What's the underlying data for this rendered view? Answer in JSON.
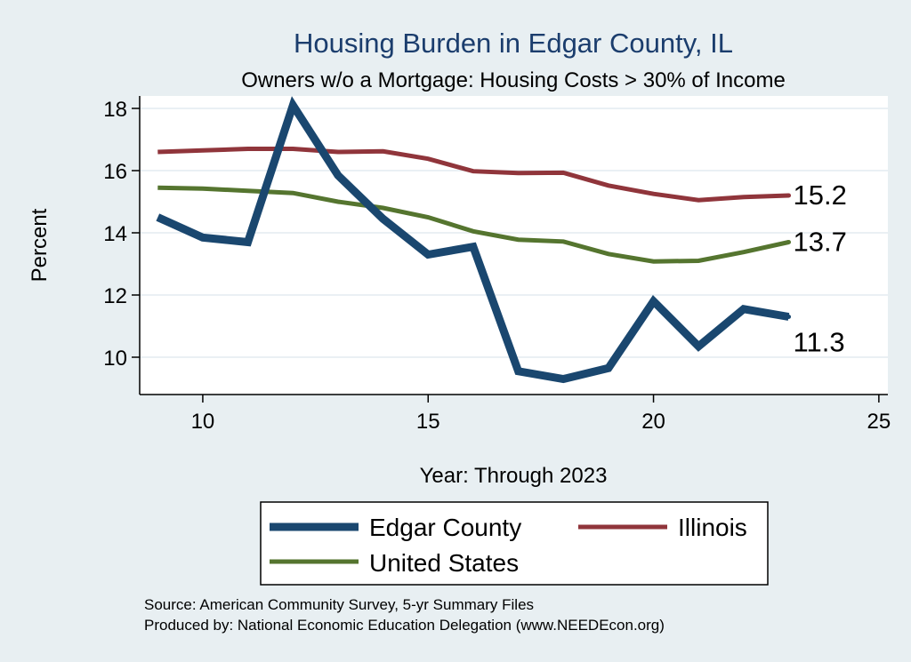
{
  "chart_data": {
    "type": "line",
    "title": "Housing Burden in Edgar County, IL",
    "subtitle": "Owners w/o a Mortgage: Housing Costs > 30% of Income",
    "xlabel": "Year: Through 2023",
    "ylabel": "Percent",
    "xlim": [
      8.6,
      25.2
    ],
    "ylim": [
      8.8,
      18.4
    ],
    "xticks": [
      10,
      15,
      20,
      25
    ],
    "yticks": [
      10,
      12,
      14,
      16,
      18
    ],
    "grid": true,
    "legend_position": "bottom",
    "x": [
      9,
      10,
      11,
      12,
      13,
      14,
      15,
      16,
      17,
      18,
      19,
      20,
      21,
      22,
      23
    ],
    "series": [
      {
        "name": "Edgar County",
        "color": "#1a476f",
        "values": [
          14.5,
          13.85,
          13.7,
          18.1,
          15.85,
          14.45,
          13.3,
          13.55,
          9.55,
          9.3,
          9.65,
          11.8,
          10.35,
          11.55,
          11.3
        ],
        "end_label": "11.3"
      },
      {
        "name": "Illinois",
        "color": "#90353b",
        "values": [
          16.6,
          16.65,
          16.7,
          16.7,
          16.6,
          16.62,
          16.38,
          15.98,
          15.92,
          15.93,
          15.52,
          15.25,
          15.05,
          15.15,
          15.2
        ],
        "end_label": "15.2"
      },
      {
        "name": "United States",
        "color": "#55752f",
        "values": [
          15.45,
          15.42,
          15.35,
          15.28,
          15.0,
          14.8,
          14.5,
          14.05,
          13.78,
          13.72,
          13.32,
          13.08,
          13.1,
          13.38,
          13.7
        ],
        "end_label": "13.7"
      }
    ],
    "notes": [
      "Source: American Community Survey, 5-yr Summary Files",
      "Produced by: National Economic Education Delegation (www.NEEDEcon.org)"
    ]
  }
}
